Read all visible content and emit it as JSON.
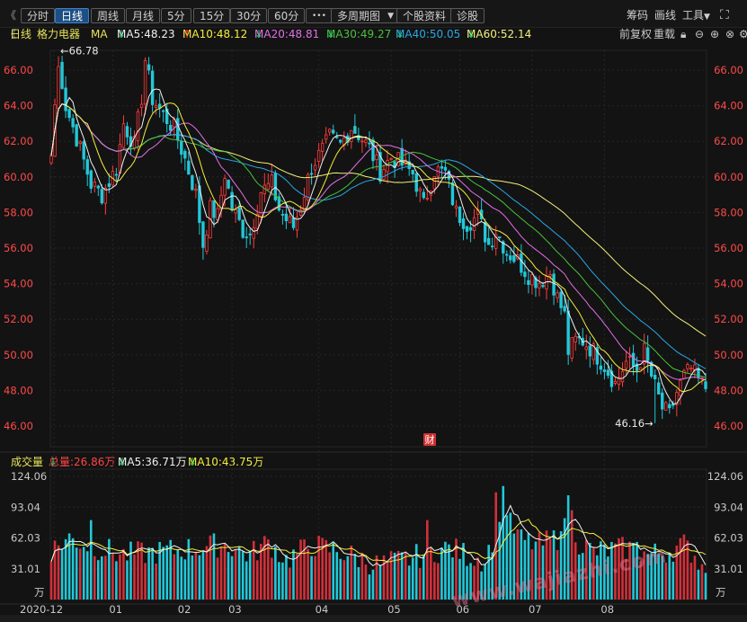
{
  "toolbar": {
    "back": "《",
    "periods": [
      "分时",
      "日线",
      "周线",
      "月线",
      "5分",
      "15分",
      "30分",
      "60分"
    ],
    "active_period": "日线",
    "more": "•••",
    "multi_period": "多周期图",
    "stock_info": "个股资料",
    "diagnose": "诊股",
    "chips": "筹码",
    "draw": "画线",
    "tools": "工具"
  },
  "legend": {
    "chart_kind": "日线",
    "stock_name": "格力电器",
    "ma_label": "MA",
    "items": [
      {
        "text": "MA5:48.23",
        "arrow": "↓",
        "color": "#f0f0f0",
        "arrow_color": "#19d36b"
      },
      {
        "text": "MA10:48.12",
        "arrow": "↑",
        "color": "#f5ee3c",
        "arrow_color": "#ff3b3b"
      },
      {
        "text": "MA20:48.81",
        "arrow": "↓",
        "color": "#e36fe8",
        "arrow_color": "#19d36b"
      },
      {
        "text": "MA30:49.27",
        "arrow": "↓",
        "color": "#49c23d",
        "arrow_color": "#19d36b"
      },
      {
        "text": "MA40:50.05",
        "arrow": "↓",
        "color": "#2aa7e6",
        "arrow_color": "#19d36b"
      },
      {
        "text": "MA60:52.14",
        "arrow": "↓",
        "color": "#f2f07a",
        "arrow_color": "#19d36b"
      }
    ],
    "adjust": "前复权",
    "overlay": "重载"
  },
  "volume_legend": {
    "title": "成交量",
    "total": "总量:26.86万",
    "total_arrow": "↓",
    "ma5": "MA5:36.71万",
    "ma5_arrow": "↓",
    "ma10": "MA10:43.75万",
    "ma10_arrow": "↓"
  },
  "watermark": "www.wajiazhi.com",
  "chart_data": [
    {
      "type": "candlestick",
      "title": "格力电器 日线",
      "y_ticks": [
        "66.00",
        "64.00",
        "62.00",
        "60.00",
        "58.00",
        "56.00",
        "54.00",
        "52.00",
        "50.00",
        "48.00",
        "46.00"
      ],
      "ylim": [
        45.5,
        67.5
      ],
      "x_ticks": [
        "2020-12",
        "01",
        "02",
        "03",
        "04",
        "05",
        "06",
        "07",
        "08"
      ],
      "annotations": [
        {
          "text": "←66.78",
          "value": 66.78
        },
        {
          "text": "46.16→",
          "value": 46.16
        }
      ],
      "marker": "财",
      "last_values": {
        "MA5": 48.23,
        "MA10": 48.12,
        "MA20": 48.81,
        "MA30": 49.27,
        "MA40": 50.05,
        "MA60": 52.14
      },
      "colors": {
        "up": "#ff3b3b",
        "down": "#22c8d8",
        "ma5": "#f0f0f0",
        "ma10": "#f5ee3c",
        "ma20": "#e36fe8",
        "ma30": "#49c23d",
        "ma40": "#2aa7e6",
        "ma60": "#f2f07a"
      },
      "close_anchors": [
        [
          0,
          61.2
        ],
        [
          2,
          66.78
        ],
        [
          4,
          64.0
        ],
        [
          7,
          62.2
        ],
        [
          11,
          59.6
        ],
        [
          14,
          59.0
        ],
        [
          18,
          60.5
        ],
        [
          20,
          63.0
        ],
        [
          23,
          61.8
        ],
        [
          25,
          64.5
        ],
        [
          26,
          66.6
        ],
        [
          28,
          64.4
        ],
        [
          31,
          63.5
        ],
        [
          34,
          62.7
        ],
        [
          37,
          61.0
        ],
        [
          40,
          59.0
        ],
        [
          42,
          56.2
        ],
        [
          44,
          58.2
        ],
        [
          46,
          57.8
        ],
        [
          48,
          60.2
        ],
        [
          50,
          58.3
        ],
        [
          53,
          57.0
        ],
        [
          55,
          56.8
        ],
        [
          58,
          59.2
        ],
        [
          61,
          59.6
        ],
        [
          63,
          58.2
        ],
        [
          65,
          57.6
        ],
        [
          67,
          57.2
        ],
        [
          69,
          58.4
        ],
        [
          72,
          60.6
        ],
        [
          75,
          61.5
        ],
        [
          77,
          62.2
        ],
        [
          80,
          61.8
        ],
        [
          83,
          62.8
        ],
        [
          85,
          62.4
        ],
        [
          88,
          61.6
        ],
        [
          91,
          60.3
        ],
        [
          94,
          61.1
        ],
        [
          97,
          60.7
        ],
        [
          100,
          60.2
        ],
        [
          103,
          58.4
        ],
        [
          106,
          60.4
        ],
        [
          109,
          60.2
        ],
        [
          112,
          58.0
        ],
        [
          115,
          57.4
        ],
        [
          118,
          57.8
        ],
        [
          121,
          56.2
        ],
        [
          123,
          57.0
        ],
        [
          126,
          55.8
        ],
        [
          129,
          55.3
        ],
        [
          132,
          54.5
        ],
        [
          135,
          54.1
        ],
        [
          138,
          54.6
        ],
        [
          140,
          53.2
        ],
        [
          142,
          52.2
        ],
        [
          143,
          50.2
        ],
        [
          145,
          50.8
        ],
        [
          147,
          50.8
        ],
        [
          150,
          50.2
        ],
        [
          153,
          49.4
        ],
        [
          156,
          48.4
        ],
        [
          159,
          49.6
        ],
        [
          162,
          49.2
        ],
        [
          164,
          50.2
        ],
        [
          166,
          48.8
        ],
        [
          169,
          47.0
        ],
        [
          171,
          46.6
        ],
        [
          173,
          47.9
        ],
        [
          175,
          48.8
        ],
        [
          177,
          49.2
        ],
        [
          179,
          48.6
        ],
        [
          181,
          48.1
        ]
      ]
    },
    {
      "type": "bar",
      "title": "成交量",
      "unit": "万",
      "y_ticks": [
        "124.06",
        "93.04",
        "62.03",
        "31.01"
      ],
      "ylim": [
        0,
        124.06
      ],
      "last_values": {
        "volume": 26.86,
        "MA5": 36.71,
        "MA10": 43.75
      },
      "colors": {
        "ma5": "#f0f0f0",
        "ma10": "#f5ee3c"
      },
      "volume_anchors": [
        [
          0,
          50
        ],
        [
          5,
          62
        ],
        [
          10,
          55
        ],
        [
          20,
          45
        ],
        [
          30,
          48
        ],
        [
          40,
          52
        ],
        [
          48,
          56
        ],
        [
          55,
          45
        ],
        [
          60,
          58
        ],
        [
          65,
          40
        ],
        [
          72,
          55
        ],
        [
          80,
          48
        ],
        [
          85,
          42
        ],
        [
          90,
          35
        ],
        [
          95,
          38
        ],
        [
          100,
          42
        ],
        [
          105,
          48
        ],
        [
          110,
          52
        ],
        [
          115,
          45
        ],
        [
          120,
          40
        ],
        [
          123,
          70
        ],
        [
          125,
          110
        ],
        [
          127,
          75
        ],
        [
          130,
          60
        ],
        [
          135,
          55
        ],
        [
          140,
          62
        ],
        [
          142,
          100
        ],
        [
          144,
          78
        ],
        [
          146,
          58
        ],
        [
          150,
          48
        ],
        [
          155,
          50
        ],
        [
          160,
          52
        ],
        [
          165,
          45
        ],
        [
          170,
          48
        ],
        [
          175,
          55
        ],
        [
          178,
          45
        ],
        [
          181,
          27
        ]
      ],
      "spikes": [
        {
          "i": 104,
          "v": 80
        },
        {
          "i": 123,
          "v": 108
        },
        {
          "i": 143,
          "v": 105
        },
        {
          "i": 142,
          "v": 82
        },
        {
          "i": 144,
          "v": 90
        },
        {
          "i": 11,
          "v": 80
        },
        {
          "i": 162,
          "v": 58
        }
      ]
    }
  ]
}
